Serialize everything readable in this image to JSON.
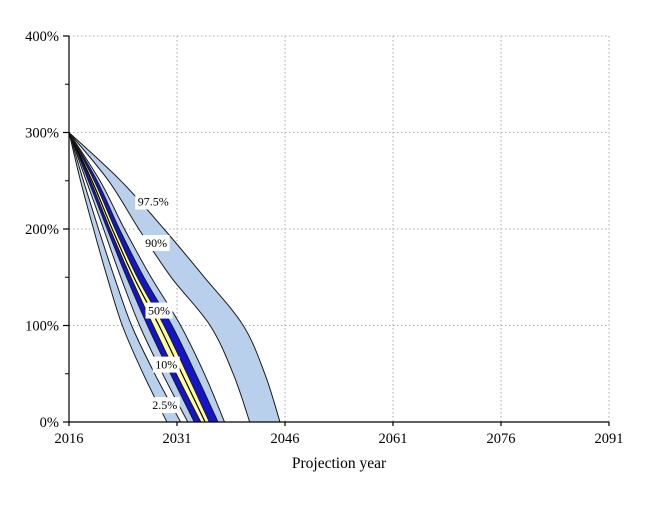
{
  "figure": {
    "title": "",
    "xlabel": "Projection year"
  },
  "chart_data": {
    "type": "area",
    "subtype": "percentile-fan-chart",
    "title": "",
    "xlabel": "Projection year",
    "ylabel": "",
    "xlim": [
      2016,
      2091
    ],
    "ylim": [
      0,
      400
    ],
    "x_ticks": [
      {
        "value": 2016,
        "label": "2016"
      },
      {
        "value": 2031,
        "label": "2031"
      },
      {
        "value": 2046,
        "label": "2046"
      },
      {
        "value": 2061,
        "label": "2061"
      },
      {
        "value": 2076,
        "label": "2076"
      },
      {
        "value": 2091,
        "label": "2091"
      }
    ],
    "y_ticks": [
      {
        "value": 0,
        "label": "0%"
      },
      {
        "value": 100,
        "label": "100%"
      },
      {
        "value": 200,
        "label": "200%"
      },
      {
        "value": 300,
        "label": "300%"
      },
      {
        "value": 400,
        "label": "400%"
      }
    ],
    "y_minor_ticks": [
      50,
      150,
      250,
      350
    ],
    "grid_style": "dotted",
    "start_point": {
      "year": 2016,
      "ratio_pct": 300
    },
    "ratio_levels": [
      300,
      250,
      200,
      150,
      100,
      50,
      0
    ],
    "percentiles": [
      {
        "p": "2.5",
        "years": [
          2016,
          2017.6,
          2019.4,
          2021.3,
          2023.4,
          2026.3,
          2029.6
        ]
      },
      {
        "p": "10",
        "years": [
          2016,
          2018.0,
          2020.1,
          2022.3,
          2024.7,
          2027.9,
          2031.5
        ]
      },
      {
        "p": "20",
        "years": [
          2016,
          2018.4,
          2020.8,
          2023.2,
          2025.8,
          2029.0,
          2032.5
        ]
      },
      {
        "p": "30",
        "years": [
          2016,
          2018.7,
          2021.3,
          2024.0,
          2026.9,
          2030.1,
          2033.4
        ]
      },
      {
        "p": "40",
        "years": [
          2016,
          2019.0,
          2021.7,
          2024.6,
          2027.7,
          2030.9,
          2034.3
        ]
      },
      {
        "p": "50",
        "years": [
          2016,
          2019.2,
          2022.0,
          2025.0,
          2028.5,
          2031.7,
          2034.9
        ]
      },
      {
        "p": "60",
        "years": [
          2016,
          2019.5,
          2022.4,
          2025.5,
          2029.2,
          2032.4,
          2035.5
        ]
      },
      {
        "p": "70",
        "years": [
          2016,
          2019.9,
          2023.0,
          2026.4,
          2030.3,
          2033.6,
          2036.7
        ]
      },
      {
        "p": "80",
        "years": [
          2016,
          2020.3,
          2023.7,
          2027.4,
          2031.5,
          2034.8,
          2037.6
        ]
      },
      {
        "p": "90",
        "years": [
          2016,
          2021.5,
          2025.7,
          2030.2,
          2035.6,
          2038.8,
          2041.1
        ]
      },
      {
        "p": "97.5",
        "years": [
          2016,
          2023.2,
          2029.2,
          2034.8,
          2040.2,
          2043.2,
          2045.3
        ]
      }
    ],
    "bands": [
      {
        "from": "2.5",
        "to": "10",
        "color_key": "light"
      },
      {
        "from": "10",
        "to": "20",
        "color_key": "white"
      },
      {
        "from": "20",
        "to": "30",
        "color_key": "light"
      },
      {
        "from": "30",
        "to": "40",
        "color_key": "dark"
      },
      {
        "from": "40",
        "to": "60",
        "color_key": "yellow"
      },
      {
        "from": "60",
        "to": "70",
        "color_key": "dark"
      },
      {
        "from": "70",
        "to": "80",
        "color_key": "light"
      },
      {
        "from": "80",
        "to": "90",
        "color_key": "white"
      },
      {
        "from": "90",
        "to": "97.5",
        "color_key": "light"
      }
    ],
    "band_labels": [
      {
        "text": "97.5%",
        "year": 2027.7,
        "ratio": 229
      },
      {
        "text": "90%",
        "year": 2028.1,
        "ratio": 186
      },
      {
        "text": "50%",
        "year": 2028.5,
        "ratio": 116
      },
      {
        "text": "10%",
        "year": 2029.5,
        "ratio": 60
      },
      {
        "text": "2.5%",
        "year": 2029.3,
        "ratio": 18
      }
    ],
    "colors": {
      "light": "#b9d0ec",
      "dark": "#1414cc",
      "yellow": "#ffff9b",
      "white": "#ffffff",
      "line": "#1a1a1a",
      "median_line": "#000000",
      "grid": "#a8a8a8",
      "axis": "#000000",
      "text": "#000000",
      "background": "#ffffff"
    },
    "legend": "none"
  }
}
